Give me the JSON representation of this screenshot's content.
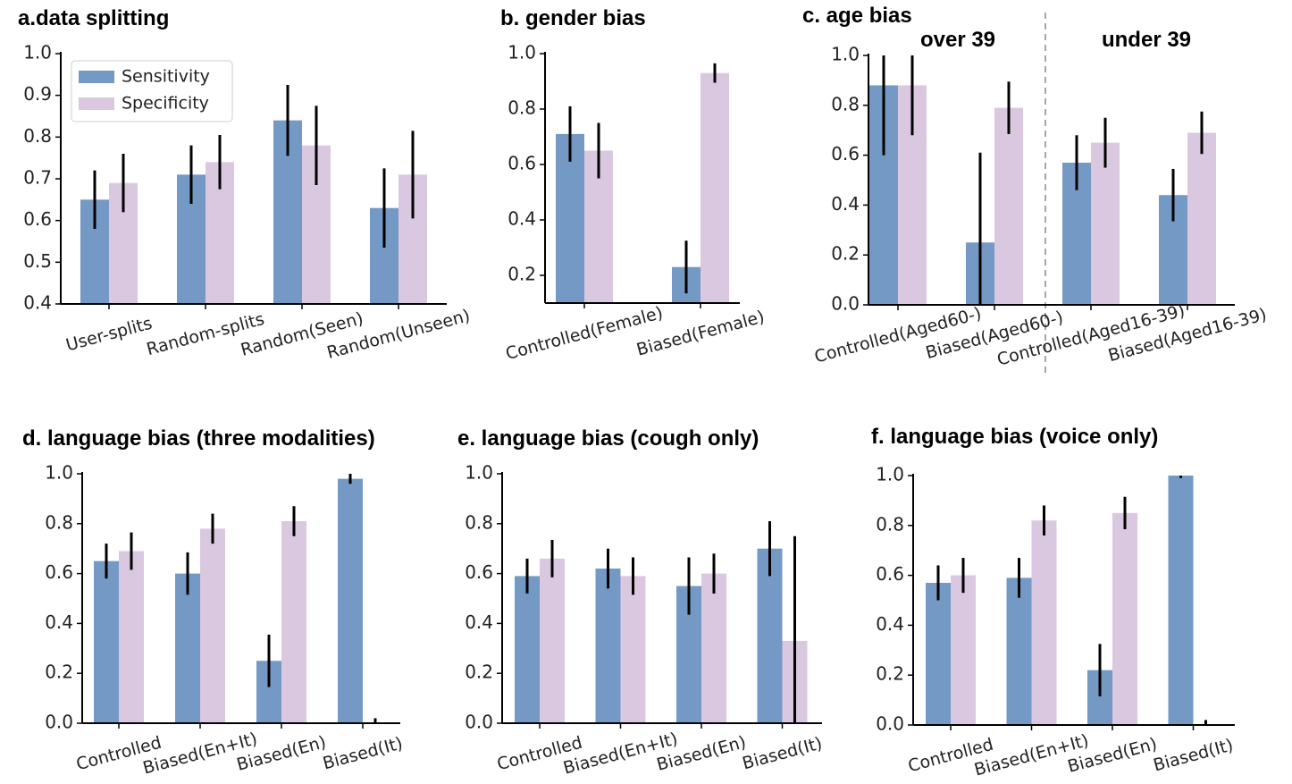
{
  "chart_data": [
    {
      "type": "bar",
      "title": "a.data splitting",
      "categories": [
        "User-splits",
        "Random-splits",
        "Random(Seen)",
        "Random(Unseen)"
      ],
      "series": [
        {
          "name": "Sensitivity",
          "color": "#7499c4",
          "values": [
            0.65,
            0.71,
            0.84,
            0.63
          ],
          "errors": [
            0.07,
            0.07,
            0.085,
            0.095
          ]
        },
        {
          "name": "Specificity",
          "color": "#d9c8df",
          "values": [
            0.69,
            0.74,
            0.78,
            0.71
          ],
          "errors": [
            0.07,
            0.065,
            0.095,
            0.105
          ]
        }
      ],
      "ylim": [
        0.4,
        1
      ],
      "yticks": [
        0.4,
        0.5,
        0.6,
        0.7,
        0.8,
        0.9,
        {
          "value": 1,
          "label": "1.0"
        }
      ],
      "legend": "upper left"
    },
    {
      "type": "bar",
      "title": "b. gender bias",
      "categories": [
        "Controlled(Female)",
        "Biased(Female)"
      ],
      "series": [
        {
          "color": "#7499c4",
          "values": [
            0.71,
            0.23
          ],
          "errors": [
            0.1,
            0.095
          ]
        },
        {
          "color": "#d9c8df",
          "values": [
            0.65,
            0.93
          ],
          "errors": [
            0.1,
            0.035
          ]
        }
      ],
      "ylim": [
        0.1,
        1
      ],
      "yticks": [
        0.2,
        0.4,
        0.6,
        0.8,
        {
          "value": 1,
          "label": "1.0"
        }
      ]
    },
    {
      "type": "bar",
      "title": "c. age bias",
      "annotations": [
        "over 39",
        "under 39"
      ],
      "categories": [
        "Controlled(Aged60-)",
        "Biased(Aged60-)",
        "Controlled(Aged16-39)",
        "Biased(Aged16-39)"
      ],
      "series": [
        {
          "color": "#7499c4",
          "values": [
            0.88,
            0.25,
            0.57,
            0.44
          ],
          "errors": [
            0.28,
            0.36,
            0.11,
            0.105
          ]
        },
        {
          "color": "#d9c8df",
          "values": [
            0.88,
            0.79,
            0.65,
            0.69
          ],
          "errors": [
            0.2,
            0.105,
            0.1,
            0.085
          ]
        }
      ],
      "ylim": [
        0,
        1
      ],
      "yticks": [
        {
          "value": 0,
          "label": "0.0"
        },
        0.2,
        0.4,
        0.6,
        0.8,
        {
          "value": 1,
          "label": "1.0"
        }
      ]
    },
    {
      "type": "bar",
      "title": "d. language bias (three modalities)",
      "categories": [
        "Controlled",
        "Biased(En+It)",
        "Biased(En)",
        "Biased(It)"
      ],
      "series": [
        {
          "color": "#7499c4",
          "values": [
            0.65,
            0.6,
            0.25,
            0.98
          ],
          "errors": [
            0.07,
            0.085,
            0.105,
            0.02
          ]
        },
        {
          "color": "#d9c8df",
          "values": [
            0.69,
            0.78,
            0.81,
            0
          ],
          "errors": [
            0.075,
            0.06,
            0.06,
            0.02
          ]
        }
      ],
      "ylim": [
        0,
        1
      ],
      "yticks": [
        {
          "value": 0,
          "label": "0.0"
        },
        0.2,
        0.4,
        0.6,
        0.8,
        {
          "value": 1,
          "label": "1.0"
        }
      ]
    },
    {
      "type": "bar",
      "title": "e. language bias (cough only)",
      "categories": [
        "Controlled",
        "Biased(En+It)",
        "Biased(En)",
        "Biased(It)"
      ],
      "series": [
        {
          "color": "#7499c4",
          "values": [
            0.59,
            0.62,
            0.55,
            0.7
          ],
          "errors": [
            0.07,
            0.08,
            0.115,
            0.11
          ]
        },
        {
          "color": "#d9c8df",
          "values": [
            0.66,
            0.59,
            0.6,
            0.33
          ],
          "errors": [
            0.075,
            0.075,
            0.08,
            0.42
          ]
        }
      ],
      "ylim": [
        0,
        1
      ],
      "yticks": [
        {
          "value": 0,
          "label": "0.0"
        },
        0.2,
        0.4,
        0.6,
        0.8,
        {
          "value": 1,
          "label": "1.0"
        }
      ]
    },
    {
      "type": "bar",
      "title": "f. language bias (voice only)",
      "categories": [
        "Controlled",
        "Biased(En+It)",
        "Biased(En)",
        "Biased(It)"
      ],
      "series": [
        {
          "color": "#7499c4",
          "values": [
            0.57,
            0.59,
            0.22,
            1
          ],
          "errors": [
            0.07,
            0.08,
            0.105,
            0.01
          ]
        },
        {
          "color": "#d9c8df",
          "values": [
            0.6,
            0.82,
            0.85,
            0
          ],
          "errors": [
            0.07,
            0.06,
            0.065,
            0.02
          ]
        }
      ],
      "ylim": [
        0,
        1
      ],
      "yticks": [
        {
          "value": 0,
          "label": "0.0"
        },
        0.2,
        0.4,
        0.6,
        0.8,
        {
          "value": 1,
          "label": "1.0"
        }
      ]
    }
  ]
}
